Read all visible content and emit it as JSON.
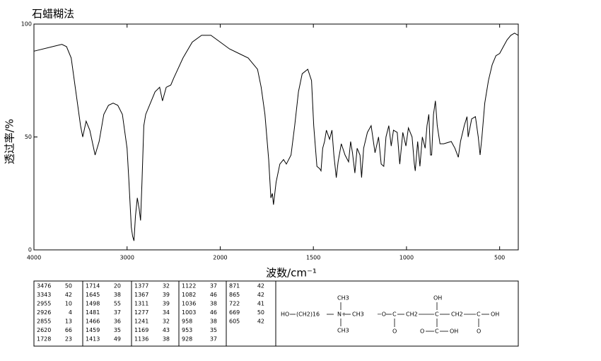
{
  "chart_data": {
    "type": "line",
    "title": "石蜡糊法",
    "x_label": "波数/cm⁻¹",
    "y_label": "透过率/%",
    "xlim": [
      4000,
      400
    ],
    "ylim": [
      0,
      100
    ],
    "xticks": [
      4000,
      3000,
      2000,
      1500,
      1000,
      500
    ],
    "yticks": [
      0,
      50,
      100
    ],
    "color": "#000000",
    "x": [
      4000,
      3800,
      3700,
      3650,
      3600,
      3550,
      3500,
      3476,
      3440,
      3400,
      3343,
      3300,
      3250,
      3200,
      3150,
      3100,
      3050,
      3000,
      2980,
      2955,
      2940,
      2926,
      2910,
      2890,
      2870,
      2855,
      2840,
      2820,
      2800,
      2750,
      2700,
      2650,
      2620,
      2580,
      2530,
      2500,
      2400,
      2300,
      2200,
      2100,
      2000,
      1950,
      1900,
      1850,
      1800,
      1780,
      1760,
      1740,
      1728,
      1720,
      1714,
      1700,
      1680,
      1660,
      1645,
      1620,
      1600,
      1580,
      1560,
      1530,
      1510,
      1498,
      1481,
      1466,
      1459,
      1450,
      1440,
      1430,
      1413,
      1400,
      1390,
      1377,
      1367,
      1350,
      1330,
      1311,
      1300,
      1290,
      1277,
      1265,
      1250,
      1241,
      1230,
      1210,
      1190,
      1169,
      1150,
      1136,
      1122,
      1110,
      1095,
      1082,
      1070,
      1050,
      1036,
      1020,
      1003,
      990,
      970,
      958,
      953,
      940,
      928,
      915,
      900,
      890,
      880,
      871,
      865,
      855,
      845,
      835,
      820,
      800,
      760,
      740,
      722,
      710,
      690,
      675,
      669,
      650,
      630,
      615,
      605,
      595,
      580,
      560,
      540,
      520,
      500,
      480,
      460,
      440,
      420,
      400
    ],
    "values": [
      88,
      90,
      91,
      90,
      85,
      70,
      55,
      50,
      57,
      53,
      42,
      48,
      60,
      64,
      65,
      64,
      60,
      45,
      30,
      10,
      6,
      4,
      15,
      23,
      18,
      13,
      30,
      55,
      60,
      65,
      70,
      72,
      66,
      72,
      73,
      76,
      85,
      92,
      95,
      95,
      92,
      89,
      87,
      85,
      80,
      72,
      60,
      40,
      23,
      25,
      20,
      30,
      38,
      40,
      38,
      42,
      55,
      70,
      78,
      80,
      75,
      55,
      37,
      36,
      35,
      45,
      48,
      53,
      49,
      53,
      42,
      32,
      39,
      47,
      42,
      39,
      48,
      43,
      34,
      45,
      42,
      32,
      45,
      52,
      55,
      43,
      50,
      38,
      37,
      50,
      55,
      46,
      53,
      52,
      38,
      52,
      46,
      54,
      50,
      38,
      35,
      48,
      37,
      50,
      45,
      55,
      60,
      42,
      42,
      60,
      66,
      55,
      47,
      47,
      48,
      45,
      41,
      48,
      55,
      59,
      50,
      58,
      59,
      50,
      42,
      50,
      65,
      75,
      82,
      86,
      87,
      90,
      93,
      95,
      96,
      95
    ]
  },
  "peak_table": [
    [
      [
        3476,
        50
      ],
      [
        3343,
        42
      ],
      [
        2955,
        10
      ],
      [
        2926,
        4
      ],
      [
        2855,
        13
      ],
      [
        2620,
        66
      ],
      [
        1728,
        23
      ]
    ],
    [
      [
        1714,
        20
      ],
      [
        1645,
        38
      ],
      [
        1498,
        55
      ],
      [
        1481,
        37
      ],
      [
        1466,
        36
      ],
      [
        1459,
        35
      ],
      [
        1413,
        49
      ]
    ],
    [
      [
        1377,
        32
      ],
      [
        1367,
        39
      ],
      [
        1311,
        39
      ],
      [
        1277,
        34
      ],
      [
        1241,
        32
      ],
      [
        1169,
        43
      ],
      [
        1136,
        38
      ]
    ],
    [
      [
        1122,
        37
      ],
      [
        1082,
        46
      ],
      [
        1036,
        38
      ],
      [
        1003,
        46
      ],
      [
        958,
        38
      ],
      [
        953,
        35
      ],
      [
        928,
        37
      ]
    ],
    [
      [
        871,
        42
      ],
      [
        865,
        42
      ],
      [
        722,
        41
      ],
      [
        669,
        50
      ],
      [
        605,
        42
      ]
    ]
  ],
  "structure": {
    "labels": [
      "HO",
      "(CH2)16",
      "N+",
      "CH3",
      "CH3",
      "CH3",
      "−O",
      "C",
      "O",
      "CH2",
      "C",
      "OH",
      "CH2",
      "C",
      "O",
      "OH",
      "O",
      "C",
      "OH"
    ]
  }
}
